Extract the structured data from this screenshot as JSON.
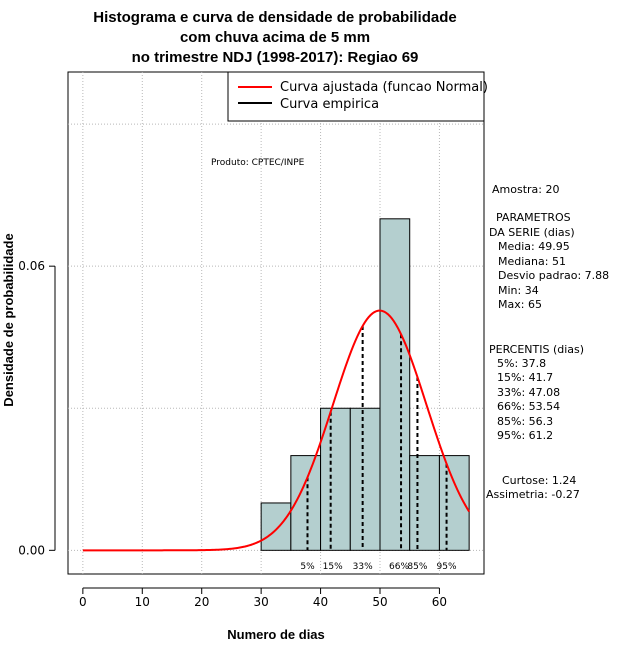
{
  "chart_data": {
    "type": "bar",
    "title_lines": [
      "Histograma e curva de densidade de probabilidade",
      "com chuva acima de 5 mm",
      "no trimestre NDJ (1998-2017): Regiao 69"
    ],
    "xlabel": "Numero de dias",
    "ylabel": "Densidade de probabilidade",
    "xlim": [
      -2.5,
      67.5
    ],
    "ylim": [
      -0.005,
      0.101
    ],
    "x_ticks": [
      0,
      10,
      20,
      30,
      40,
      50,
      60
    ],
    "y_ticks": [
      0.0,
      0.06
    ],
    "y_tick_labels": [
      "0.00",
      "0.06"
    ],
    "grid": true,
    "bins": [
      {
        "x0": 30,
        "x1": 35,
        "density": 0.01
      },
      {
        "x0": 35,
        "x1": 40,
        "density": 0.02
      },
      {
        "x0": 40,
        "x1": 45,
        "density": 0.03
      },
      {
        "x0": 45,
        "x1": 50,
        "density": 0.03
      },
      {
        "x0": 50,
        "x1": 55,
        "density": 0.07
      },
      {
        "x0": 55,
        "x1": 60,
        "density": 0.02
      },
      {
        "x0": 60,
        "x1": 65,
        "density": 0.02
      }
    ],
    "bar_color": "#b4cfcf",
    "normal_curve": {
      "mean": 49.95,
      "sd": 7.88,
      "x_from": 0,
      "x_to": 65,
      "color": "#ff0000"
    },
    "percentiles": [
      {
        "label": "5%",
        "value": 37.8
      },
      {
        "label": "15%",
        "value": 41.7
      },
      {
        "label": "33%",
        "value": 47.08
      },
      {
        "label": "66%",
        "value": 53.54
      },
      {
        "label": "85%",
        "value": 56.3
      },
      {
        "label": "95%",
        "value": 61.2
      }
    ],
    "legend": {
      "placement": "top-right",
      "entries": [
        {
          "label": "Curva ajustada (funcao Normal)",
          "color": "#ff0000"
        },
        {
          "label": "Curva empirica",
          "color": "#000000"
        }
      ]
    },
    "credit": "Produto: CPTEC/INPE",
    "stats": {
      "sample": "Amostra: 20",
      "params_header_1": "PARAMETROS",
      "params_header_2": "DA SERIE (dias)",
      "media": "Media: 49.95",
      "mediana": "Mediana: 51",
      "desvio": "Desvio padrao: 7.88",
      "min": "Min: 34",
      "max": "Max: 65",
      "percentis_header": "PERCENTIS (dias)",
      "p5": "5%: 37.8",
      "p15": "15%: 41.7",
      "p33": "33%: 47.08",
      "p66": "66%: 53.54",
      "p85": "85%: 56.3",
      "p95": "95%: 61.2",
      "curtose": "Curtose: 1.24",
      "assimetria": "Assimetria: -0.27"
    }
  }
}
